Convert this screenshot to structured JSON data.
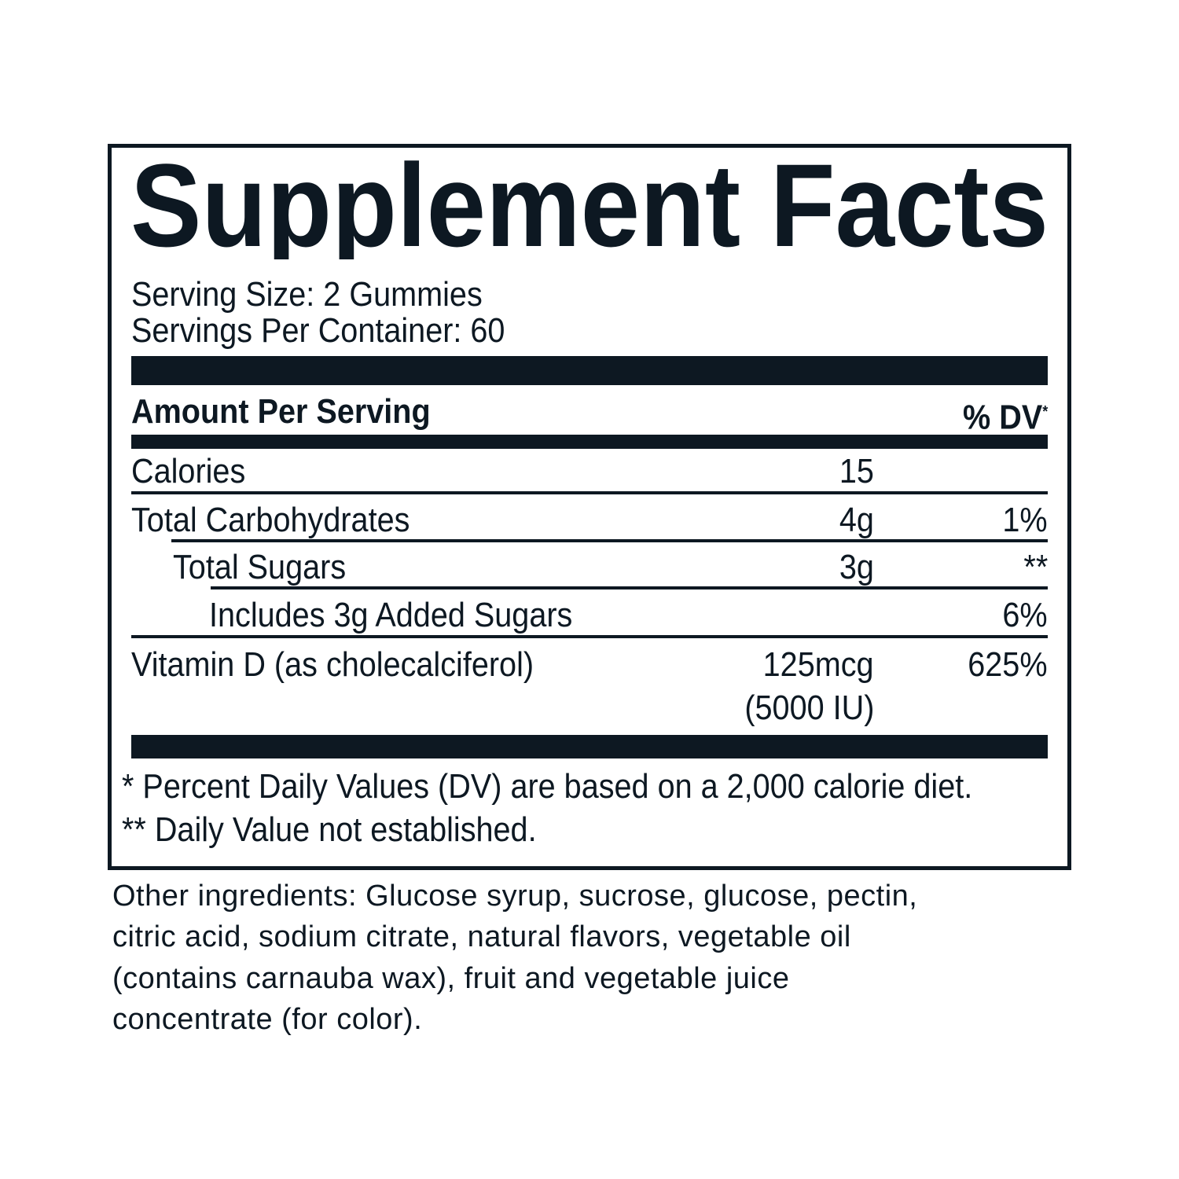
{
  "title": "Supplement Facts",
  "serving_size": "Serving Size: 2 Gummies",
  "servings_per_container": "Servings Per Container: 60",
  "header": {
    "amount": "Amount Per Serving",
    "dv": "% DV",
    "dv_mark": "*"
  },
  "rows": [
    {
      "name": "Calories",
      "amount": "15",
      "dv": ""
    },
    {
      "name": "Total Carbohydrates",
      "amount": "4g",
      "dv": "1%"
    },
    {
      "name": "Total Sugars",
      "amount": "3g",
      "dv": "**"
    },
    {
      "name": "Includes 3g Added Sugars",
      "amount": "",
      "dv": "6%"
    },
    {
      "name": "Vitamin D (as cholecalciferol)",
      "amount": "125mcg",
      "amount2": "(5000 IU)",
      "dv": "625%"
    }
  ],
  "footnotes": [
    "* Percent Daily Values (DV) are based on a 2,000 calorie diet.",
    "** Daily Value not established."
  ],
  "ingredients": [
    "Other ingredients: Glucose syrup, sucrose, glucose, pectin,",
    "citric acid, sodium citrate, natural flavors, vegetable oil",
    "(contains carnauba wax), fruit and vegetable juice",
    "concentrate (for color)."
  ],
  "colors": {
    "ink": "#0d1822"
  }
}
